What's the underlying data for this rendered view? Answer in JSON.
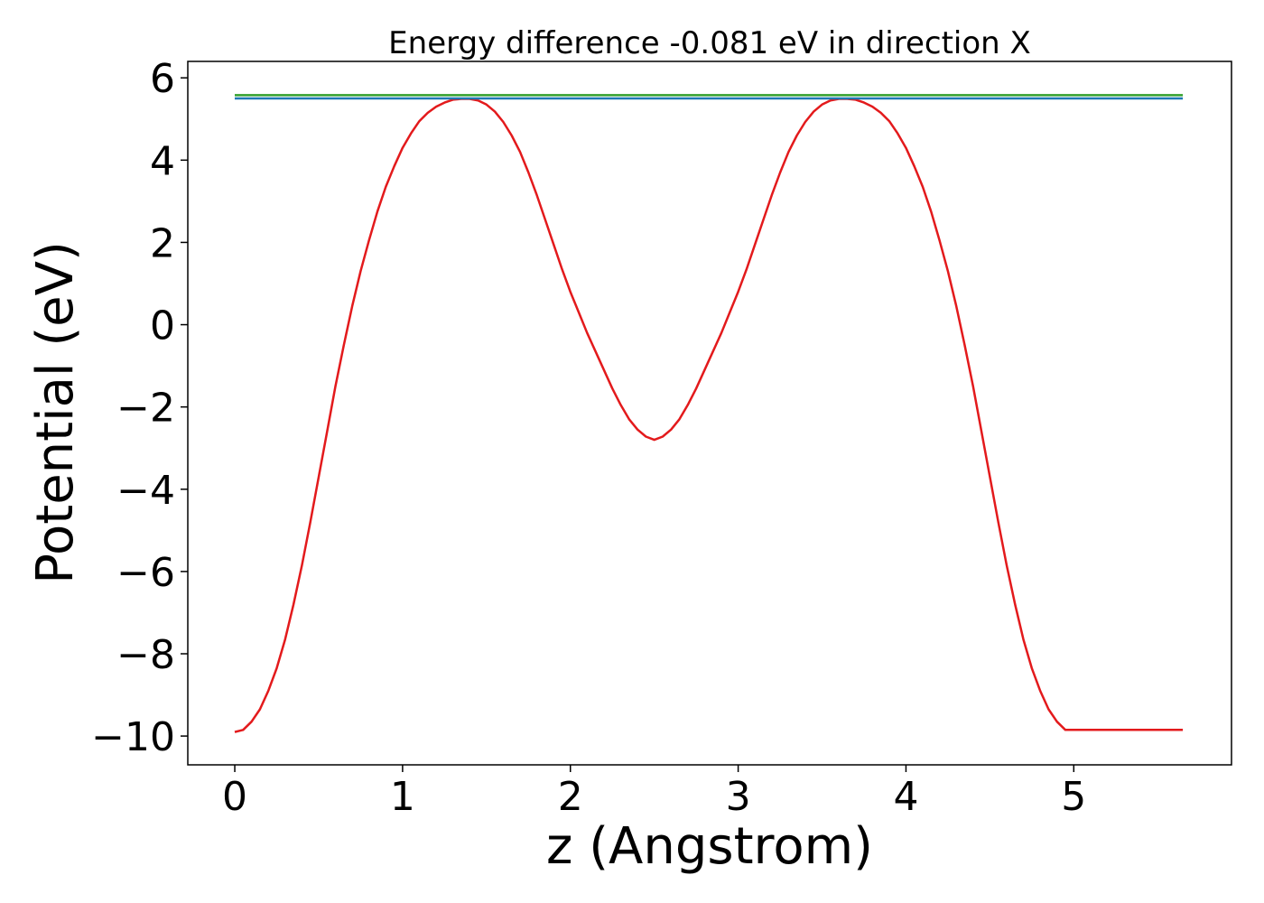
{
  "chart_data": {
    "type": "line",
    "title": "Energy difference -0.081 eV in direction X",
    "xlabel": "z (Angstrom)",
    "ylabel": "Potential (eV)",
    "xlim": [
      -0.28,
      5.94
    ],
    "ylim": [
      -10.7,
      6.4
    ],
    "xticks": [
      0,
      1,
      2,
      3,
      4,
      5
    ],
    "yticks": [
      -10,
      -8,
      -6,
      -4,
      -2,
      0,
      2,
      4,
      6
    ],
    "xtick_labels": [
      "0",
      "1",
      "2",
      "3",
      "4",
      "5"
    ],
    "ytick_labels": [
      "−10",
      "−8",
      "−6",
      "−4",
      "−2",
      "0",
      "2",
      "4",
      "6"
    ],
    "grid": false,
    "legend": "none",
    "series": [
      {
        "color": "#e31a1c",
        "x": [
          0.0,
          0.05,
          0.1,
          0.15,
          0.2,
          0.25,
          0.3,
          0.35,
          0.4,
          0.45,
          0.5,
          0.55,
          0.6,
          0.65,
          0.7,
          0.75,
          0.8,
          0.85,
          0.9,
          0.95,
          1.0,
          1.05,
          1.1,
          1.15,
          1.2,
          1.25,
          1.3,
          1.35,
          1.4,
          1.45,
          1.5,
          1.55,
          1.6,
          1.65,
          1.7,
          1.75,
          1.8,
          1.85,
          1.9,
          1.95,
          2.0,
          2.05,
          2.1,
          2.15,
          2.2,
          2.25,
          2.3,
          2.35,
          2.4,
          2.45,
          2.5,
          2.55,
          2.6,
          2.65,
          2.7,
          2.75,
          2.8,
          2.85,
          2.9,
          2.95,
          3.0,
          3.05,
          3.1,
          3.15,
          3.2,
          3.25,
          3.3,
          3.35,
          3.4,
          3.45,
          3.5,
          3.55,
          3.6,
          3.65,
          3.7,
          3.75,
          3.8,
          3.85,
          3.9,
          3.95,
          4.0,
          4.05,
          4.1,
          4.15,
          4.2,
          4.25,
          4.3,
          4.35,
          4.4,
          4.45,
          4.5,
          4.55,
          4.6,
          4.65,
          4.7,
          4.75,
          4.8,
          4.85,
          4.9,
          4.95,
          5.0,
          5.05,
          5.1,
          5.15,
          5.2,
          5.25,
          5.3,
          5.35,
          5.4,
          5.45,
          5.5,
          5.55,
          5.6,
          5.65
        ],
        "y": [
          -9.9,
          -9.85,
          -9.65,
          -9.35,
          -8.9,
          -8.35,
          -7.65,
          -6.8,
          -5.85,
          -4.8,
          -3.7,
          -2.6,
          -1.5,
          -0.5,
          0.45,
          1.3,
          2.05,
          2.75,
          3.35,
          3.85,
          4.3,
          4.65,
          4.95,
          5.15,
          5.3,
          5.4,
          5.47,
          5.49,
          5.49,
          5.45,
          5.35,
          5.18,
          4.93,
          4.6,
          4.2,
          3.7,
          3.15,
          2.55,
          1.95,
          1.35,
          0.8,
          0.3,
          -0.2,
          -0.65,
          -1.1,
          -1.55,
          -1.95,
          -2.3,
          -2.55,
          -2.72,
          -2.8,
          -2.72,
          -2.55,
          -2.3,
          -1.95,
          -1.55,
          -1.1,
          -0.65,
          -0.2,
          0.3,
          0.8,
          1.35,
          1.95,
          2.55,
          3.15,
          3.7,
          4.2,
          4.6,
          4.93,
          5.18,
          5.35,
          5.45,
          5.49,
          5.49,
          5.47,
          5.4,
          5.3,
          5.15,
          4.95,
          4.65,
          4.3,
          3.85,
          3.35,
          2.75,
          2.05,
          1.3,
          0.45,
          -0.5,
          -1.5,
          -2.6,
          -3.7,
          -4.8,
          -5.85,
          -6.8,
          -7.65,
          -8.35,
          -8.9,
          -9.35,
          -9.65,
          -9.85,
          -9.85,
          -9.85,
          -9.85,
          -9.85,
          -9.85,
          -9.85,
          -9.85,
          -9.85,
          -9.85,
          -9.85,
          -9.85,
          -9.85,
          -9.85,
          -9.85
        ]
      },
      {
        "color": "#33a02c",
        "x": [
          0.0,
          5.65
        ],
        "y": [
          5.58,
          5.58
        ]
      },
      {
        "color": "#1f78b4",
        "x": [
          0.0,
          5.65
        ],
        "y": [
          5.5,
          5.5
        ]
      }
    ]
  }
}
